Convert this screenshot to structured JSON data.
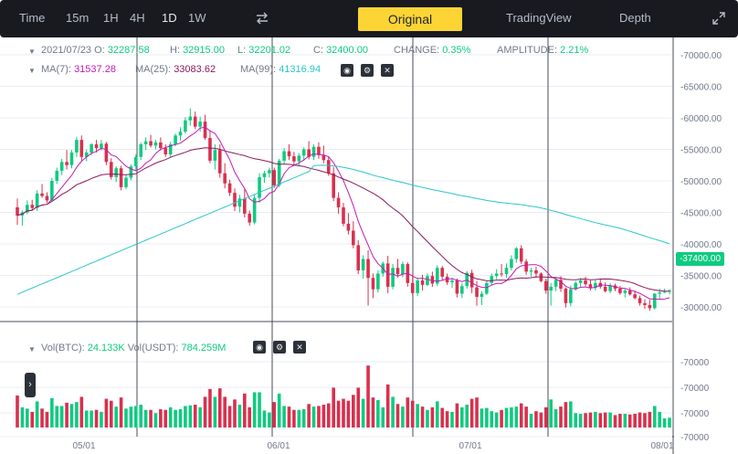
{
  "toolbar": {
    "intervals": [
      "Time",
      "15m",
      "1H",
      "4H",
      "1D",
      "1W"
    ],
    "active_interval": "1D",
    "views": [
      "Original",
      "TradingView",
      "Depth"
    ],
    "active_view": "Original"
  },
  "ohlc": {
    "date": "2021/07/23",
    "o_label": "O:",
    "open": "32287.58",
    "h_label": "H:",
    "high": "32915.00",
    "l_label": "L:",
    "low": "32201.02",
    "c_label": "C:",
    "close": "32400.00",
    "change_label": "CHANGE:",
    "change": "0.35%",
    "amplitude_label": "AMPLITUDE:",
    "amplitude": "2.21%"
  },
  "ma": {
    "ma7_label": "MA(7):",
    "ma7": "31537.28",
    "ma25_label": "MA(25):",
    "ma25": "33083.62",
    "ma99_label": "MA(99):",
    "ma99": "41316.94"
  },
  "volume": {
    "btc_label": "Vol(BTC):",
    "btc": "24.133K",
    "usdt_label": "Vol(USDT):",
    "usdt": "784.259M"
  },
  "price_axis": [
    "-70000.00",
    "-65000.00",
    "-60000.00",
    "-55000.00",
    "-50000.00",
    "-45000.00",
    "-40000.00",
    "-35000.00",
    "-30000.00"
  ],
  "current_price_tag": "-37400.00",
  "volume_axis": [
    "-70000",
    "-70000",
    "-70000",
    "-70000"
  ],
  "date_axis": [
    "05/01",
    "06/01",
    "07/01",
    "08/01"
  ],
  "colors": {
    "up": "#0ecb81",
    "down": "#d9304e",
    "ma7": "#c21ab6",
    "ma25": "#8c1a5c",
    "ma99": "#2bc6c9",
    "accent": "#fcd535",
    "toolbar_bg": "#181a20"
  },
  "icons": [
    "swap-arrows-icon",
    "expand-icon",
    "eye-icon",
    "gear-icon",
    "close-icon",
    "chevron-right-icon",
    "collapse-triangle-icon"
  ],
  "chart_data": {
    "type": "candlestick",
    "start_date": "2021/04/14",
    "interval": "1D",
    "ylim": [
      28000,
      70000
    ],
    "candles": [
      [
        45800,
        47200,
        43000,
        44500
      ],
      [
        44500,
        45300,
        42900,
        45000
      ],
      [
        45000,
        46900,
        44700,
        46200
      ],
      [
        46200,
        47000,
        45300,
        45700
      ],
      [
        45700,
        48500,
        45200,
        48000
      ],
      [
        48000,
        49500,
        47300,
        47600
      ],
      [
        47600,
        48200,
        46500,
        46900
      ],
      [
        46900,
        50500,
        46700,
        50000
      ],
      [
        50000,
        52100,
        49500,
        51600
      ],
      [
        51600,
        53500,
        50900,
        53000
      ],
      [
        53000,
        54900,
        51800,
        52500
      ],
      [
        52500,
        54900,
        52000,
        54500
      ],
      [
        54500,
        57000,
        53800,
        56500
      ],
      [
        56500,
        57200,
        53200,
        53800
      ],
      [
        53800,
        55000,
        53100,
        54500
      ],
      [
        54500,
        56000,
        54100,
        55800
      ],
      [
        55800,
        56500,
        54500,
        55200
      ],
      [
        55200,
        56500,
        54800,
        55900
      ],
      [
        55900,
        56200,
        52500,
        53000
      ],
      [
        53000,
        53600,
        50200,
        50600
      ],
      [
        50600,
        52300,
        49800,
        52000
      ],
      [
        52000,
        52400,
        48500,
        49000
      ],
      [
        49000,
        50900,
        48700,
        50500
      ],
      [
        50500,
        52600,
        50100,
        52300
      ],
      [
        52300,
        54200,
        51600,
        53800
      ],
      [
        53800,
        56100,
        53300,
        55800
      ],
      [
        55800,
        56900,
        54900,
        56300
      ],
      [
        56300,
        57300,
        55300,
        55600
      ],
      [
        55600,
        56500,
        55000,
        56100
      ],
      [
        56100,
        56900,
        54800,
        55200
      ],
      [
        55200,
        55800,
        53800,
        54200
      ],
      [
        54200,
        56200,
        53800,
        55800
      ],
      [
        55800,
        57500,
        55500,
        57200
      ],
      [
        57200,
        58500,
        56400,
        57800
      ],
      [
        57800,
        60100,
        57500,
        59600
      ],
      [
        59600,
        61500,
        58800,
        60200
      ],
      [
        60200,
        61000,
        58200,
        58600
      ],
      [
        58600,
        60200,
        57800,
        59400
      ],
      [
        59400,
        60500,
        56500,
        56800
      ],
      [
        56800,
        58000,
        52800,
        53200
      ],
      [
        53200,
        55800,
        51800,
        54900
      ],
      [
        54900,
        55800,
        50500,
        51200
      ],
      [
        51200,
        52800,
        48800,
        49600
      ],
      [
        49600,
        50200,
        47600,
        48100
      ],
      [
        48100,
        48800,
        45200,
        45900
      ],
      [
        45900,
        47800,
        45000,
        47200
      ],
      [
        47200,
        48700,
        44200,
        44800
      ],
      [
        44800,
        45300,
        42900,
        43400
      ],
      [
        43400,
        47800,
        43100,
        47300
      ],
      [
        47300,
        51200,
        46500,
        50600
      ],
      [
        50600,
        51600,
        49700,
        51200
      ],
      [
        51200,
        52100,
        50500,
        51700
      ],
      [
        51700,
        52100,
        48900,
        49300
      ],
      [
        49300,
        53500,
        49000,
        53200
      ],
      [
        53200,
        55200,
        52600,
        54700
      ],
      [
        54700,
        55800,
        53300,
        53900
      ],
      [
        53900,
        54600,
        52600,
        53100
      ],
      [
        53100,
        54400,
        52400,
        54000
      ],
      [
        54000,
        55300,
        53200,
        55000
      ],
      [
        55000,
        56300,
        53400,
        53800
      ],
      [
        53800,
        55800,
        53300,
        55400
      ],
      [
        55400,
        56100,
        53500,
        54100
      ],
      [
        54100,
        55600,
        52800,
        53300
      ],
      [
        53300,
        53800,
        50800,
        51200
      ],
      [
        51200,
        52200,
        46800,
        47300
      ],
      [
        47300,
        48200,
        44800,
        45800
      ],
      [
        45800,
        46500,
        42800,
        43200
      ],
      [
        43200,
        44900,
        41500,
        42100
      ],
      [
        42100,
        43600,
        39300,
        39800
      ],
      [
        39800,
        40600,
        35200,
        35800
      ],
      [
        35800,
        38200,
        34500,
        37600
      ],
      [
        37600,
        39000,
        30200,
        34600
      ],
      [
        34600,
        35300,
        31400,
        32800
      ],
      [
        32800,
        35800,
        32300,
        35300
      ],
      [
        35300,
        37200,
        34800,
        36900
      ],
      [
        36900,
        38100,
        32200,
        33200
      ],
      [
        33200,
        36800,
        32800,
        36200
      ],
      [
        36200,
        37600,
        34700,
        35200
      ],
      [
        35200,
        37200,
        34700,
        36800
      ],
      [
        36800,
        37100,
        33200,
        33800
      ],
      [
        33800,
        35200,
        31800,
        32200
      ],
      [
        32200,
        34600,
        31700,
        34200
      ],
      [
        34200,
        35100,
        32600,
        33500
      ],
      [
        33500,
        35300,
        33300,
        34900
      ],
      [
        34900,
        35600,
        33200,
        33700
      ],
      [
        33700,
        36600,
        33300,
        36200
      ],
      [
        36200,
        36500,
        34200,
        34800
      ],
      [
        34800,
        35300,
        33500,
        33900
      ],
      [
        33900,
        34700,
        33000,
        34200
      ],
      [
        34200,
        34500,
        31500,
        32100
      ],
      [
        32100,
        33800,
        31400,
        33300
      ],
      [
        33300,
        35700,
        32900,
        35400
      ],
      [
        35400,
        35900,
        32200,
        33100
      ],
      [
        33100,
        34100,
        30200,
        31600
      ],
      [
        31600,
        32500,
        30300,
        32100
      ],
      [
        32100,
        34200,
        31900,
        33800
      ],
      [
        33800,
        35300,
        33500,
        34900
      ],
      [
        34900,
        36000,
        34400,
        35300
      ],
      [
        35300,
        36800,
        34800,
        35200
      ],
      [
        35200,
        36900,
        34600,
        36200
      ],
      [
        36200,
        38200,
        35800,
        37600
      ],
      [
        37600,
        39500,
        37000,
        39300
      ],
      [
        39300,
        39800,
        36800,
        37200
      ],
      [
        37200,
        37600,
        35100,
        35600
      ],
      [
        35600,
        36200,
        34800,
        35800
      ],
      [
        35800,
        36400,
        34600,
        35300
      ],
      [
        35300,
        35500,
        33900,
        34100
      ],
      [
        34100,
        34500,
        32100,
        32600
      ],
      [
        32600,
        33800,
        30200,
        33200
      ],
      [
        33200,
        34600,
        32500,
        34300
      ],
      [
        34300,
        34900,
        32400,
        32900
      ],
      [
        32900,
        33100,
        29900,
        30600
      ],
      [
        30600,
        33400,
        30100,
        32800
      ],
      [
        32800,
        34100,
        32600,
        33800
      ],
      [
        33800,
        34600,
        33200,
        34200
      ],
      [
        34200,
        34800,
        33300,
        33600
      ],
      [
        33600,
        34200,
        32600,
        33000
      ],
      [
        33000,
        34300,
        32600,
        33800
      ],
      [
        33800,
        34400,
        32900,
        33200
      ],
      [
        33200,
        33900,
        32300,
        32500
      ],
      [
        32500,
        33800,
        32200,
        33400
      ],
      [
        33400,
        33700,
        32500,
        32900
      ],
      [
        32900,
        33300,
        31900,
        32200
      ],
      [
        32200,
        32900,
        31500,
        32600
      ],
      [
        32600,
        33100,
        31800,
        32000
      ],
      [
        32000,
        32600,
        31200,
        31400
      ],
      [
        31400,
        31800,
        30200,
        30600
      ],
      [
        30600,
        31200,
        29700,
        30300
      ],
      [
        30300,
        31100,
        29400,
        29800
      ],
      [
        29800,
        32200,
        29600,
        32100
      ],
      [
        32100,
        32900,
        31200,
        32300
      ],
      [
        32300,
        32900,
        32200,
        32400
      ],
      [
        32400,
        32800,
        32000,
        32600
      ]
    ],
    "ma7_visible": true,
    "ma25_visible": true,
    "ma99_visible": true
  }
}
